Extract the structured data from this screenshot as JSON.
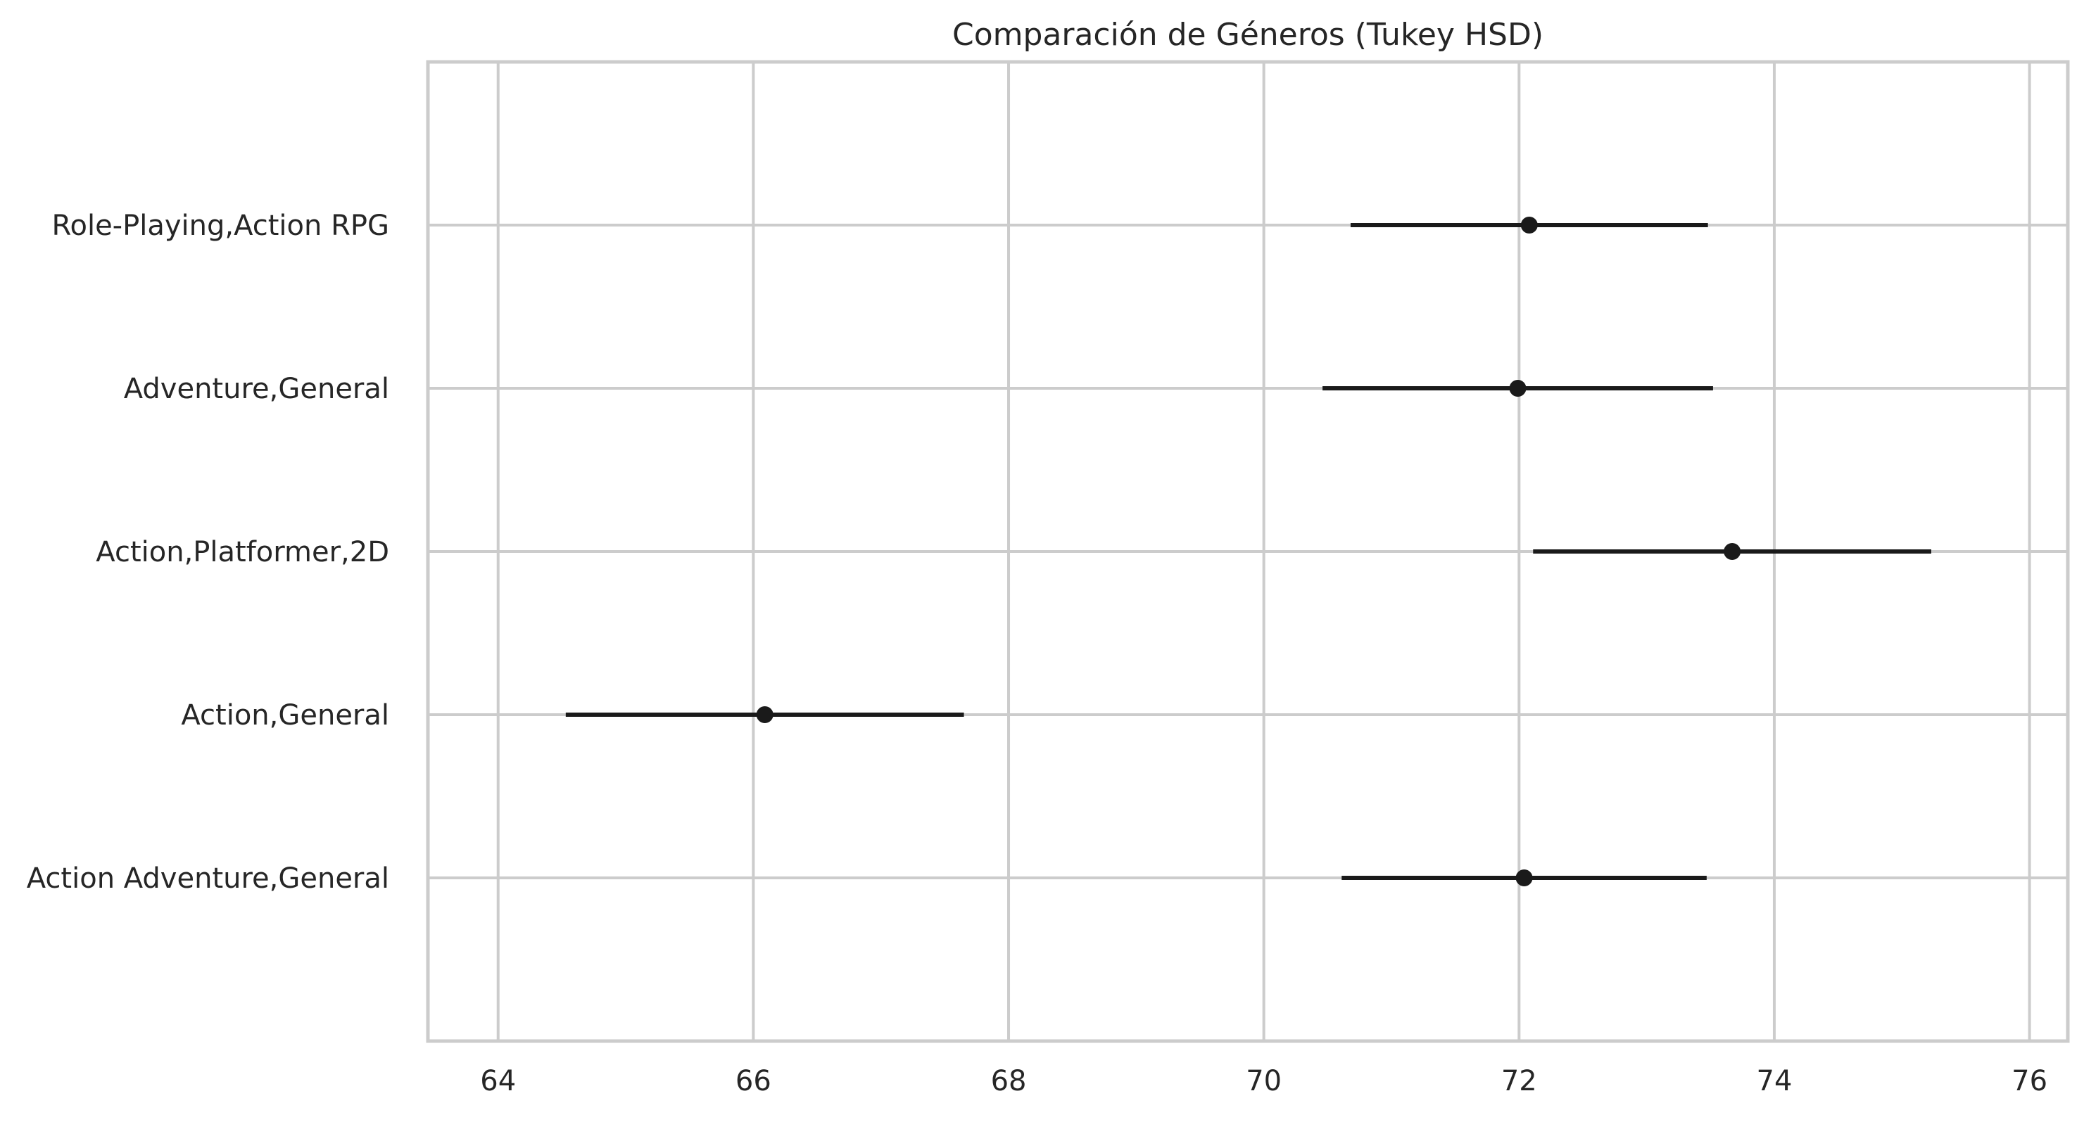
{
  "chart_data": {
    "type": "scatter",
    "title": "Comparación de Géneros (Tukey HSD)",
    "xlabel": "",
    "ylabel": "",
    "xlim": [
      63.45,
      76.3
    ],
    "xticks": [
      64,
      66,
      68,
      70,
      72,
      74,
      76
    ],
    "grid": true,
    "legend": "none",
    "point_color": "#1a1a1a",
    "grid_color": "#cccccc",
    "categories": [
      "Role-Playing,Action RPG",
      "Adventure,General",
      "Action,Platformer,2D",
      "Action,General",
      "Action Adventure,General"
    ],
    "means": [
      72.08,
      71.99,
      73.67,
      66.09,
      72.04
    ],
    "lower": [
      70.68,
      70.46,
      72.11,
      64.53,
      70.61
    ],
    "upper": [
      73.48,
      73.52,
      75.23,
      67.65,
      73.47
    ]
  }
}
